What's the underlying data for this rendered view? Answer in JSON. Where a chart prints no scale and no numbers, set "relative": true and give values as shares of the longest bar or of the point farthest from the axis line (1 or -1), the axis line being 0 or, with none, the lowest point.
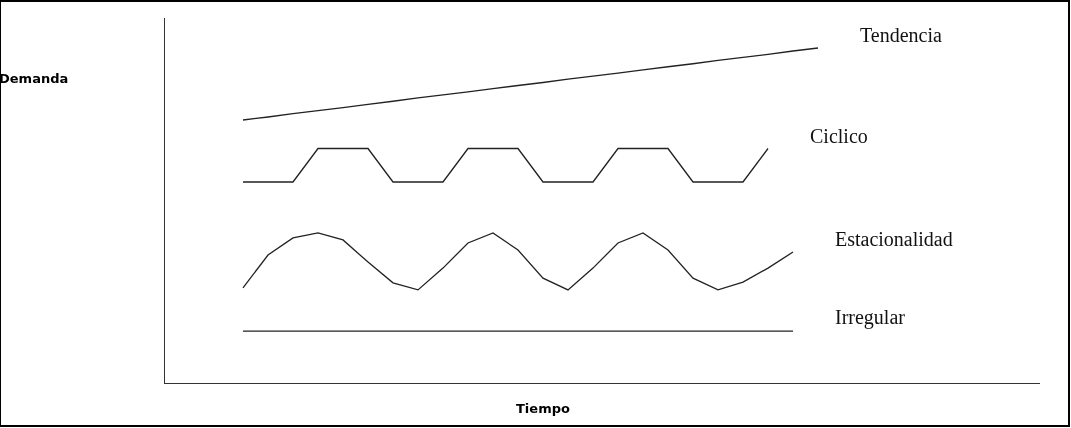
{
  "chart_data": {
    "type": "line",
    "relative": true,
    "xlabel": "Tiempo",
    "annotations": [
      "Demanda"
    ],
    "legend": false,
    "marker": "none",
    "categories": [
      null,
      null,
      null,
      null,
      null,
      null,
      null,
      null,
      null,
      null,
      null,
      null,
      null,
      null,
      null,
      null,
      null,
      null,
      null,
      null,
      null,
      null,
      null,
      null
    ],
    "series": [
      {
        "name": "Tendencia",
        "color": "#222222",
        "values": [
          0.785,
          0.794,
          0.804,
          0.813,
          0.822,
          0.832,
          0.841,
          0.851,
          0.86,
          0.869,
          0.879,
          0.888,
          0.897,
          0.907,
          0.916,
          0.925,
          0.935,
          0.944,
          0.953,
          0.963,
          0.972,
          0.981,
          0.991,
          1.0
        ]
      },
      {
        "name": "Ciclico",
        "color": "#222222",
        "values": [
          0.6,
          0.6,
          0.6,
          0.7,
          0.7,
          0.7,
          0.6,
          0.6,
          0.6,
          0.7,
          0.7,
          0.7,
          0.6,
          0.6,
          0.6,
          0.7,
          0.7,
          0.7,
          0.6,
          0.6,
          0.6,
          0.7,
          null,
          null
        ]
      },
      {
        "name": "Estacionalidad",
        "color": "#222222",
        "values": [
          0.284,
          0.382,
          0.433,
          0.448,
          0.427,
          0.361,
          0.299,
          0.278,
          0.343,
          0.418,
          0.448,
          0.397,
          0.313,
          0.278,
          0.343,
          0.418,
          0.448,
          0.397,
          0.313,
          0.278,
          0.301,
          0.343,
          0.391,
          null
        ]
      },
      {
        "name": "Irregular",
        "color": "#222222",
        "values": [
          0.155,
          0.155,
          0.155,
          0.155,
          0.155,
          0.155,
          0.155,
          0.155,
          0.155,
          0.155,
          0.155,
          0.155,
          0.155,
          0.155,
          0.155,
          0.155,
          0.155,
          0.155,
          0.155,
          0.155,
          0.155,
          0.155,
          0.155,
          null
        ]
      }
    ]
  }
}
